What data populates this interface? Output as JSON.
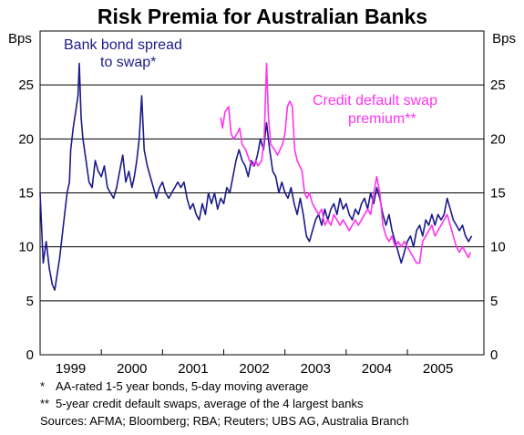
{
  "chart_data": {
    "type": "line",
    "title": "Risk Premia for Australian Banks",
    "ylabel_left": "Bps",
    "ylabel_right": "Bps",
    "ylim": [
      0,
      30
    ],
    "yticks": [
      0,
      5,
      10,
      15,
      20,
      25
    ],
    "xlim": [
      1998.5,
      2005.75
    ],
    "x_tick_labels": [
      {
        "label": "1999",
        "x": 1999.0
      },
      {
        "label": "2000",
        "x": 2000.0
      },
      {
        "label": "2001",
        "x": 2001.0
      },
      {
        "label": "2002",
        "x": 2002.0
      },
      {
        "label": "2003",
        "x": 2003.0
      },
      {
        "label": "2004",
        "x": 2004.0
      },
      {
        "label": "2005",
        "x": 2005.0
      }
    ],
    "grid": true,
    "series": [
      {
        "name": "Bank bond spread to swap*",
        "label_lines": [
          "Bank bond spread",
          "to swap*"
        ],
        "color": "#1b1b8a",
        "points": [
          [
            1998.5,
            15.0
          ],
          [
            1998.55,
            8.5
          ],
          [
            1998.6,
            10.5
          ],
          [
            1998.65,
            8.0
          ],
          [
            1998.7,
            6.5
          ],
          [
            1998.74,
            6.0
          ],
          [
            1998.78,
            7.5
          ],
          [
            1998.82,
            9.0
          ],
          [
            1998.86,
            11.0
          ],
          [
            1998.9,
            13.0
          ],
          [
            1998.94,
            15.0
          ],
          [
            1998.98,
            16.0
          ],
          [
            1999.0,
            19.0
          ],
          [
            1999.04,
            21.0
          ],
          [
            1999.08,
            22.5
          ],
          [
            1999.12,
            24.0
          ],
          [
            1999.14,
            27.0
          ],
          [
            1999.17,
            22.0
          ],
          [
            1999.2,
            20.0
          ],
          [
            1999.25,
            18.0
          ],
          [
            1999.3,
            16.0
          ],
          [
            1999.35,
            15.5
          ],
          [
            1999.4,
            18.0
          ],
          [
            1999.45,
            17.0
          ],
          [
            1999.5,
            16.5
          ],
          [
            1999.55,
            17.5
          ],
          [
            1999.6,
            15.5
          ],
          [
            1999.65,
            15.0
          ],
          [
            1999.7,
            14.5
          ],
          [
            1999.75,
            15.5
          ],
          [
            1999.8,
            17.0
          ],
          [
            1999.85,
            18.5
          ],
          [
            1999.9,
            16.0
          ],
          [
            1999.95,
            17.0
          ],
          [
            2000.0,
            15.5
          ],
          [
            2000.04,
            16.5
          ],
          [
            2000.08,
            18.0
          ],
          [
            2000.12,
            20.0
          ],
          [
            2000.16,
            24.0
          ],
          [
            2000.2,
            19.0
          ],
          [
            2000.25,
            17.5
          ],
          [
            2000.3,
            16.5
          ],
          [
            2000.35,
            15.5
          ],
          [
            2000.4,
            14.5
          ],
          [
            2000.45,
            15.5
          ],
          [
            2000.5,
            16.0
          ],
          [
            2000.55,
            15.0
          ],
          [
            2000.6,
            14.5
          ],
          [
            2000.65,
            15.0
          ],
          [
            2000.7,
            15.5
          ],
          [
            2000.75,
            16.0
          ],
          [
            2000.8,
            15.5
          ],
          [
            2000.85,
            16.0
          ],
          [
            2000.9,
            14.5
          ],
          [
            2000.95,
            13.5
          ],
          [
            2001.0,
            14.0
          ],
          [
            2001.05,
            13.0
          ],
          [
            2001.1,
            12.5
          ],
          [
            2001.15,
            14.0
          ],
          [
            2001.2,
            13.0
          ],
          [
            2001.25,
            15.0
          ],
          [
            2001.3,
            14.0
          ],
          [
            2001.35,
            15.0
          ],
          [
            2001.4,
            13.5
          ],
          [
            2001.45,
            14.5
          ],
          [
            2001.5,
            14.0
          ],
          [
            2001.55,
            15.5
          ],
          [
            2001.6,
            15.0
          ],
          [
            2001.65,
            16.5
          ],
          [
            2001.7,
            18.0
          ],
          [
            2001.75,
            19.0
          ],
          [
            2001.8,
            18.0
          ],
          [
            2001.85,
            17.5
          ],
          [
            2001.9,
            16.5
          ],
          [
            2001.95,
            18.0
          ],
          [
            2002.0,
            17.5
          ],
          [
            2002.05,
            18.5
          ],
          [
            2002.1,
            20.0
          ],
          [
            2002.15,
            19.0
          ],
          [
            2002.2,
            21.5
          ],
          [
            2002.25,
            19.0
          ],
          [
            2002.3,
            17.0
          ],
          [
            2002.35,
            16.5
          ],
          [
            2002.4,
            15.0
          ],
          [
            2002.45,
            16.0
          ],
          [
            2002.5,
            15.0
          ],
          [
            2002.55,
            14.5
          ],
          [
            2002.6,
            15.5
          ],
          [
            2002.65,
            14.0
          ],
          [
            2002.7,
            13.0
          ],
          [
            2002.75,
            14.5
          ],
          [
            2002.8,
            13.0
          ],
          [
            2002.85,
            11.0
          ],
          [
            2002.9,
            10.5
          ],
          [
            2002.95,
            11.5
          ],
          [
            2003.0,
            12.5
          ],
          [
            2003.05,
            13.0
          ],
          [
            2003.1,
            12.0
          ],
          [
            2003.15,
            13.5
          ],
          [
            2003.2,
            12.5
          ],
          [
            2003.25,
            13.5
          ],
          [
            2003.3,
            14.0
          ],
          [
            2003.35,
            13.0
          ],
          [
            2003.4,
            14.5
          ],
          [
            2003.45,
            13.5
          ],
          [
            2003.5,
            14.0
          ],
          [
            2003.55,
            13.0
          ],
          [
            2003.6,
            12.5
          ],
          [
            2003.65,
            13.5
          ],
          [
            2003.7,
            13.0
          ],
          [
            2003.75,
            14.0
          ],
          [
            2003.8,
            14.5
          ],
          [
            2003.85,
            13.5
          ],
          [
            2003.9,
            15.0
          ],
          [
            2003.95,
            14.0
          ],
          [
            2004.0,
            15.5
          ],
          [
            2004.05,
            14.5
          ],
          [
            2004.1,
            13.0
          ],
          [
            2004.15,
            12.0
          ],
          [
            2004.2,
            13.0
          ],
          [
            2004.25,
            11.5
          ],
          [
            2004.3,
            10.5
          ],
          [
            2004.35,
            9.5
          ],
          [
            2004.4,
            8.5
          ],
          [
            2004.45,
            9.5
          ],
          [
            2004.5,
            10.5
          ],
          [
            2004.55,
            11.0
          ],
          [
            2004.6,
            10.0
          ],
          [
            2004.65,
            11.5
          ],
          [
            2004.7,
            12.0
          ],
          [
            2004.75,
            11.0
          ],
          [
            2004.8,
            12.5
          ],
          [
            2004.85,
            12.0
          ],
          [
            2004.9,
            13.0
          ],
          [
            2004.95,
            12.0
          ],
          [
            2005.0,
            13.0
          ],
          [
            2005.05,
            12.5
          ],
          [
            2005.1,
            13.0
          ],
          [
            2005.15,
            14.5
          ],
          [
            2005.2,
            13.5
          ],
          [
            2005.25,
            12.5
          ],
          [
            2005.3,
            12.0
          ],
          [
            2005.35,
            11.5
          ],
          [
            2005.4,
            12.0
          ],
          [
            2005.45,
            11.0
          ],
          [
            2005.5,
            10.5
          ],
          [
            2005.55,
            11.0
          ]
        ]
      },
      {
        "name": "Credit default swap premium**",
        "label_lines": [
          "Credit default swap",
          "premium**"
        ],
        "color": "#ff33ee",
        "points": [
          [
            2001.45,
            22.0
          ],
          [
            2001.48,
            21.0
          ],
          [
            2001.52,
            22.5
          ],
          [
            2001.58,
            23.0
          ],
          [
            2001.62,
            20.5
          ],
          [
            2001.66,
            20.0
          ],
          [
            2001.72,
            20.5
          ],
          [
            2001.76,
            21.0
          ],
          [
            2001.8,
            19.5
          ],
          [
            2001.86,
            19.0
          ],
          [
            2001.92,
            18.0
          ],
          [
            2001.98,
            17.5
          ],
          [
            2002.02,
            18.0
          ],
          [
            2002.06,
            17.5
          ],
          [
            2002.12,
            18.0
          ],
          [
            2002.16,
            20.0
          ],
          [
            2002.2,
            27.0
          ],
          [
            2002.23,
            22.0
          ],
          [
            2002.27,
            19.5
          ],
          [
            2002.33,
            19.0
          ],
          [
            2002.38,
            18.5
          ],
          [
            2002.42,
            19.0
          ],
          [
            2002.46,
            19.5
          ],
          [
            2002.5,
            20.5
          ],
          [
            2002.54,
            23.0
          ],
          [
            2002.58,
            23.5
          ],
          [
            2002.62,
            23.0
          ],
          [
            2002.66,
            19.0
          ],
          [
            2002.7,
            18.0
          ],
          [
            2002.74,
            17.5
          ],
          [
            2002.78,
            17.0
          ],
          [
            2002.82,
            15.0
          ],
          [
            2002.86,
            14.5
          ],
          [
            2002.9,
            15.0
          ],
          [
            2002.95,
            14.0
          ],
          [
            2003.0,
            13.5
          ],
          [
            2003.05,
            13.0
          ],
          [
            2003.1,
            13.5
          ],
          [
            2003.15,
            12.0
          ],
          [
            2003.2,
            12.5
          ],
          [
            2003.25,
            12.0
          ],
          [
            2003.3,
            13.0
          ],
          [
            2003.35,
            12.5
          ],
          [
            2003.4,
            12.0
          ],
          [
            2003.45,
            12.5
          ],
          [
            2003.5,
            12.0
          ],
          [
            2003.55,
            11.5
          ],
          [
            2003.6,
            12.0
          ],
          [
            2003.65,
            12.5
          ],
          [
            2003.7,
            12.0
          ],
          [
            2003.75,
            12.5
          ],
          [
            2003.8,
            13.0
          ],
          [
            2003.85,
            13.5
          ],
          [
            2003.9,
            13.0
          ],
          [
            2003.95,
            15.0
          ],
          [
            2004.0,
            16.5
          ],
          [
            2004.05,
            15.0
          ],
          [
            2004.1,
            12.0
          ],
          [
            2004.15,
            11.0
          ],
          [
            2004.2,
            10.5
          ],
          [
            2004.25,
            11.0
          ],
          [
            2004.3,
            10.0
          ],
          [
            2004.35,
            10.5
          ],
          [
            2004.4,
            10.0
          ],
          [
            2004.45,
            10.5
          ],
          [
            2004.5,
            10.0
          ],
          [
            2004.55,
            9.5
          ],
          [
            2004.6,
            9.0
          ],
          [
            2004.65,
            8.5
          ],
          [
            2004.7,
            8.5
          ],
          [
            2004.75,
            10.5
          ],
          [
            2004.8,
            11.0
          ],
          [
            2004.85,
            11.5
          ],
          [
            2004.9,
            12.0
          ],
          [
            2004.95,
            11.0
          ],
          [
            2005.0,
            11.5
          ],
          [
            2005.05,
            12.0
          ],
          [
            2005.1,
            12.5
          ],
          [
            2005.15,
            13.0
          ],
          [
            2005.2,
            12.0
          ],
          [
            2005.25,
            11.0
          ],
          [
            2005.3,
            10.0
          ],
          [
            2005.35,
            9.5
          ],
          [
            2005.4,
            10.0
          ],
          [
            2005.45,
            9.5
          ],
          [
            2005.5,
            9.0
          ],
          [
            2005.53,
            9.5
          ]
        ]
      }
    ]
  },
  "notes": [
    {
      "mark": "*",
      "text": "AA-rated 1-5 year bonds, 5-day moving average"
    },
    {
      "mark": "**",
      "text": "5-year credit default swaps, average of the 4 largest banks"
    }
  ],
  "sources": "Sources: AFMA; Bloomberg; RBA; Reuters; UBS AG, Australia Branch"
}
